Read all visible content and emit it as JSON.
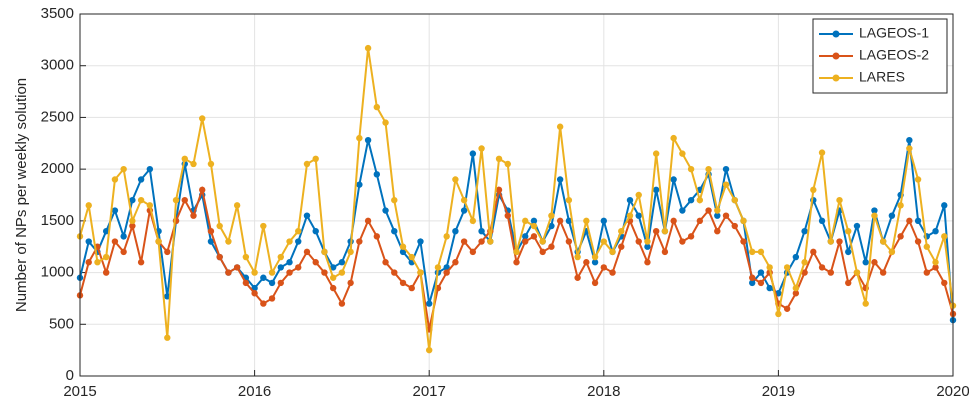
{
  "chart_data": {
    "type": "line",
    "y_label": "Number of NPs per weekly solution",
    "x": [
      2015.0,
      2015.05,
      2015.1,
      2015.15,
      2015.2,
      2015.25,
      2015.3,
      2015.35,
      2015.4,
      2015.45,
      2015.5,
      2015.55,
      2015.6,
      2015.65,
      2015.7,
      2015.75,
      2015.8,
      2015.85,
      2015.9,
      2015.95,
      2016.0,
      2016.05,
      2016.1,
      2016.15,
      2016.2,
      2016.25,
      2016.3,
      2016.35,
      2016.4,
      2016.45,
      2016.5,
      2016.55,
      2016.6,
      2016.65,
      2016.7,
      2016.75,
      2016.8,
      2016.85,
      2016.9,
      2016.95,
      2017.0,
      2017.05,
      2017.1,
      2017.15,
      2017.2,
      2017.25,
      2017.3,
      2017.35,
      2017.4,
      2017.45,
      2017.5,
      2017.55,
      2017.6,
      2017.65,
      2017.7,
      2017.75,
      2017.8,
      2017.85,
      2017.9,
      2017.95,
      2018.0,
      2018.05,
      2018.1,
      2018.15,
      2018.2,
      2018.25,
      2018.3,
      2018.35,
      2018.4,
      2018.45,
      2018.5,
      2018.55,
      2018.6,
      2018.65,
      2018.7,
      2018.75,
      2018.8,
      2018.85,
      2018.9,
      2018.95,
      2019.0,
      2019.05,
      2019.1,
      2019.15,
      2019.2,
      2019.25,
      2019.3,
      2019.35,
      2019.4,
      2019.45,
      2019.5,
      2019.55,
      2019.6,
      2019.65,
      2019.7,
      2019.75,
      2019.8,
      2019.85,
      2019.9,
      2019.95,
      2020.0
    ],
    "series": [
      {
        "name": "LAGEOS-1",
        "color": "#0072bd",
        "values": [
          950,
          1300,
          1200,
          1400,
          1600,
          1350,
          1700,
          1900,
          2000,
          1400,
          770,
          1500,
          2050,
          1600,
          1750,
          1300,
          1150,
          1000,
          1050,
          950,
          850,
          950,
          900,
          1050,
          1100,
          1300,
          1550,
          1400,
          1200,
          1050,
          1100,
          1300,
          1850,
          2280,
          1950,
          1600,
          1400,
          1200,
          1100,
          1300,
          700,
          1000,
          1050,
          1400,
          1600,
          2150,
          1400,
          1300,
          1750,
          1600,
          1200,
          1350,
          1500,
          1300,
          1450,
          1900,
          1500,
          1200,
          1400,
          1100,
          1500,
          1200,
          1350,
          1700,
          1550,
          1250,
          1800,
          1400,
          1900,
          1600,
          1700,
          1800,
          1950,
          1550,
          2000,
          1700,
          1500,
          900,
          1000,
          850,
          800,
          1000,
          1150,
          1400,
          1700,
          1500,
          1300,
          1600,
          1200,
          1450,
          1100,
          1600,
          1300,
          1550,
          1750,
          2280,
          1500,
          1350,
          1400,
          1650,
          540
        ]
      },
      {
        "name": "LAGEOS-2",
        "color": "#d95319",
        "values": [
          780,
          1100,
          1250,
          1000,
          1300,
          1200,
          1450,
          1100,
          1600,
          1300,
          1200,
          1500,
          1700,
          1550,
          1800,
          1400,
          1150,
          1000,
          1050,
          900,
          800,
          700,
          750,
          900,
          1000,
          1050,
          1200,
          1100,
          1000,
          850,
          700,
          900,
          1300,
          1500,
          1350,
          1100,
          1000,
          900,
          850,
          1000,
          450,
          850,
          1000,
          1100,
          1300,
          1200,
          1300,
          1400,
          1800,
          1550,
          1100,
          1300,
          1350,
          1200,
          1250,
          1500,
          1300,
          950,
          1100,
          900,
          1050,
          1000,
          1250,
          1500,
          1300,
          1100,
          1400,
          1200,
          1500,
          1300,
          1350,
          1500,
          1600,
          1400,
          1550,
          1450,
          1300,
          950,
          900,
          1000,
          700,
          650,
          800,
          1000,
          1200,
          1050,
          1000,
          1300,
          900,
          1000,
          850,
          1100,
          1000,
          1200,
          1350,
          1500,
          1300,
          1000,
          1050,
          900,
          600
        ]
      },
      {
        "name": "LARES",
        "color": "#edb120",
        "values": [
          1350,
          1650,
          1100,
          1150,
          1900,
          2000,
          1500,
          1700,
          1650,
          1300,
          370,
          1700,
          2100,
          2050,
          2490,
          2050,
          1450,
          1300,
          1650,
          1150,
          1000,
          1450,
          1000,
          1150,
          1300,
          1400,
          2050,
          2100,
          1200,
          950,
          1000,
          1200,
          2300,
          3170,
          2600,
          2450,
          1700,
          1250,
          1150,
          1000,
          250,
          1050,
          1350,
          1900,
          1700,
          1500,
          2200,
          1300,
          2100,
          2050,
          1200,
          1500,
          1450,
          1300,
          1550,
          2410,
          1700,
          1150,
          1500,
          1150,
          1300,
          1200,
          1400,
          1550,
          1750,
          1300,
          2150,
          1400,
          2300,
          2150,
          2000,
          1700,
          2000,
          1600,
          1850,
          1700,
          1500,
          1200,
          1200,
          1050,
          600,
          1050,
          850,
          1100,
          1800,
          2160,
          1300,
          1700,
          1400,
          1000,
          700,
          1550,
          1300,
          1200,
          1650,
          2200,
          1900,
          1250,
          1100,
          1350,
          680
        ]
      }
    ],
    "xlim": [
      2015,
      2020
    ],
    "xticks": [
      2015,
      2016,
      2017,
      2018,
      2019,
      2020
    ],
    "ylim": [
      0,
      3500
    ],
    "yticks": [
      0,
      500,
      1000,
      1500,
      2000,
      2500,
      3000,
      3500
    ],
    "grid": true,
    "legend": "upper-right"
  }
}
